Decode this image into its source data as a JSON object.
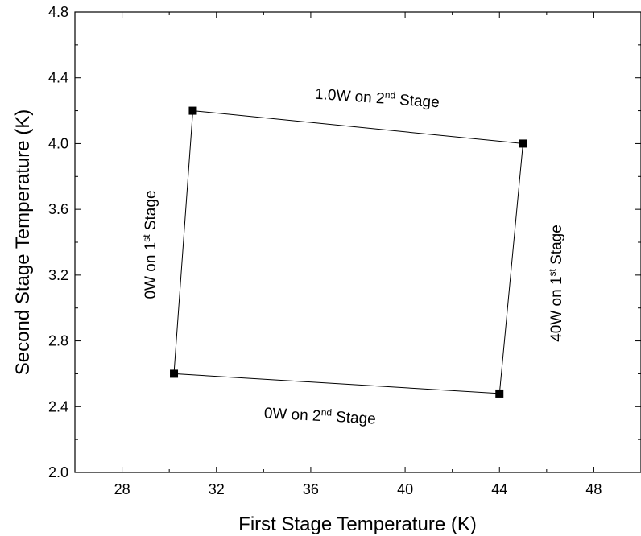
{
  "chart_data": {
    "type": "scatter",
    "xlabel": "First Stage Temperature (K)",
    "ylabel": "Second Stage Temperature (K)",
    "xlim": [
      26,
      50
    ],
    "ylim": [
      2.0,
      4.8
    ],
    "x_ticks": [
      28,
      32,
      36,
      40,
      44,
      48
    ],
    "x_tick_labels": [
      "28",
      "32",
      "36",
      "40",
      "44",
      "48"
    ],
    "y_ticks": [
      2.0,
      2.4,
      2.8,
      3.2,
      3.6,
      4.0,
      4.4,
      4.8
    ],
    "y_tick_labels": [
      "2.0",
      "2.4",
      "2.8",
      "3.2",
      "3.6",
      "4.0",
      "4.4",
      "4.8"
    ],
    "grid": false,
    "marker": "square",
    "color": "#000000",
    "series": [
      {
        "x": [
          31.0,
          45.0,
          44.0,
          30.2
        ],
        "y": [
          4.2,
          4.0,
          2.48,
          2.6
        ],
        "closed": true
      }
    ],
    "annotations": [
      {
        "id": "top",
        "base": "1.0W on 2",
        "sup": "nd",
        "rest": " Stage"
      },
      {
        "id": "bottom",
        "base": "0W on 2",
        "sup": "nd",
        "rest": " Stage"
      },
      {
        "id": "left",
        "base": "0W on 1",
        "sup": "st",
        "rest": " Stage"
      },
      {
        "id": "right",
        "base": "40W on 1",
        "sup": "st",
        "rest": " Stage"
      }
    ]
  }
}
